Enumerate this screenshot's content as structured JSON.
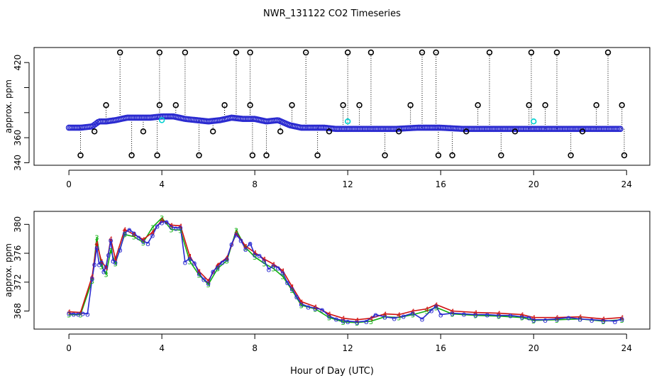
{
  "chart_data": [
    {
      "type": "scatter",
      "panel": "upper",
      "title": "NWR_131122  CO2 Timeseries",
      "ylabel": "approx. ppm",
      "xlim": [
        -1.5,
        25
      ],
      "ylim": [
        338,
        432
      ],
      "x_ticks": [
        0,
        4,
        8,
        12,
        16,
        20,
        24
      ],
      "y_ticks": [
        340,
        360,
        380,
        400,
        420
      ],
      "y_tick_labels": [
        "340",
        "360",
        "",
        "",
        "420"
      ],
      "baseline_series": {
        "name": "",
        "x": [
          0.0,
          0.5,
          1.0,
          1.3,
          1.6,
          2.0,
          2.5,
          3.0,
          3.5,
          4.0,
          4.5,
          5.0,
          5.5,
          6.0,
          6.5,
          7.0,
          7.5,
          8.0,
          8.5,
          9.0,
          9.5,
          10.0,
          10.5,
          11.0,
          11.5,
          12.0,
          13.0,
          14.0,
          15.0,
          16.0,
          17.0,
          18.0,
          19.0,
          19.8,
          20.0,
          21.0,
          22.0,
          23.0,
          23.8
        ],
        "values": [
          368,
          368,
          369,
          373,
          373,
          374,
          376,
          376,
          376,
          377,
          377,
          375,
          374,
          373,
          374,
          376,
          375,
          375,
          373,
          374,
          370,
          368,
          368,
          368,
          367,
          367,
          367,
          367,
          368,
          368,
          367,
          367,
          367,
          367,
          367,
          367,
          367,
          367,
          367
        ],
        "color": "#2a2ad0"
      },
      "spikes": {
        "x": [
          0.5,
          1.1,
          1.6,
          2.2,
          2.7,
          3.2,
          3.8,
          3.9,
          3.9,
          4.6,
          5.0,
          5.6,
          6.2,
          6.7,
          7.2,
          7.8,
          7.8,
          7.9,
          8.5,
          9.1,
          9.6,
          10.2,
          10.7,
          11.2,
          11.8,
          12.0,
          12.5,
          13.0,
          13.6,
          14.2,
          14.7,
          15.2,
          15.8,
          15.9,
          16.5,
          17.1,
          17.6,
          18.1,
          18.6,
          19.2,
          19.8,
          19.9,
          20.5,
          21.0,
          21.6,
          22.1,
          22.7,
          23.2,
          23.8,
          23.9
        ],
        "values": [
          345,
          365,
          386,
          432,
          345,
          365,
          345,
          386,
          432,
          386,
          432,
          345,
          365,
          386,
          432,
          386,
          432,
          345,
          345,
          365,
          386,
          432,
          345,
          365,
          386,
          432,
          386,
          432,
          345,
          365,
          386,
          432,
          432,
          345,
          345,
          365,
          386,
          432,
          345,
          365,
          386,
          432,
          386,
          432,
          345,
          365,
          386,
          432,
          386,
          345
        ]
      },
      "cyan_points": {
        "x": [
          4.0,
          12.0,
          20.0
        ],
        "values": [
          374,
          373,
          373
        ],
        "color": "#00d0d0"
      }
    },
    {
      "type": "line",
      "panel": "lower",
      "xlabel": "Hour of Day (UTC)",
      "ylabel": "approx. ppm",
      "xlim": [
        -1.5,
        25
      ],
      "ylim": [
        365.5,
        381.8
      ],
      "x_ticks": [
        0,
        4,
        8,
        12,
        16,
        20,
        24
      ],
      "y_ticks": [
        368,
        372,
        376,
        380
      ],
      "series": [
        {
          "name": "",
          "color": "#2a2ad0",
          "x": [
            0.0,
            0.2,
            0.4,
            0.6,
            0.8,
            1.0,
            1.1,
            1.2,
            1.3,
            1.4,
            1.5,
            1.6,
            1.7,
            1.8,
            1.9,
            2.0,
            2.2,
            2.4,
            2.6,
            2.8,
            3.0,
            3.2,
            3.4,
            3.6,
            3.8,
            4.0,
            4.2,
            4.4,
            4.6,
            4.8,
            5.0,
            5.2,
            5.4,
            5.6,
            5.8,
            6.0,
            6.2,
            6.4,
            6.6,
            6.8,
            7.0,
            7.2,
            7.4,
            7.6,
            7.8,
            8.0,
            8.2,
            8.4,
            8.6,
            8.8,
            9.0,
            9.2,
            9.4,
            9.6,
            9.8,
            10.0,
            10.3,
            10.6,
            10.9,
            11.2,
            11.5,
            11.8,
            12.0,
            12.4,
            12.8,
            13.2,
            13.6,
            14.0,
            14.4,
            14.8,
            15.2,
            15.6,
            15.8,
            16.0,
            16.5,
            17.0,
            17.5,
            18.0,
            18.5,
            19.0,
            19.5,
            19.8,
            20.0,
            20.5,
            21.0,
            21.5,
            22.0,
            22.5,
            23.0,
            23.5,
            23.8
          ],
          "values": [
            367.7,
            367.6,
            367.6,
            367.7,
            367.6,
            372.5,
            374.5,
            376.8,
            374.5,
            374.8,
            373.5,
            374.2,
            375.8,
            377.8,
            375.0,
            374.8,
            376.5,
            378.8,
            379.3,
            378.8,
            378.2,
            377.7,
            377.4,
            378.5,
            379.8,
            380.3,
            380.4,
            379.7,
            379.5,
            379.6,
            374.8,
            375.3,
            374.7,
            373.2,
            372.4,
            371.9,
            373.5,
            374.1,
            374.8,
            375.2,
            377.3,
            378.6,
            377.8,
            376.6,
            377.4,
            375.8,
            375.7,
            375.0,
            373.8,
            374.3,
            374.0,
            373.3,
            372.0,
            371.1,
            370.0,
            369.0,
            368.6,
            368.4,
            368.2,
            367.3,
            366.9,
            366.7,
            366.6,
            366.5,
            366.6,
            367.5,
            367.2,
            367.0,
            367.3,
            367.7,
            366.9,
            368.1,
            368.7,
            367.5,
            367.7,
            367.6,
            367.5,
            367.5,
            367.4,
            367.4,
            367.2,
            367.1,
            366.8,
            366.8,
            366.9,
            367.1,
            366.9,
            366.8,
            366.7,
            366.6,
            366.9
          ]
        },
        {
          "name": "",
          "color": "#d01010",
          "x": [
            0.0,
            0.5,
            1.0,
            1.2,
            1.4,
            1.6,
            1.8,
            2.0,
            2.4,
            2.8,
            3.2,
            3.6,
            4.0,
            4.4,
            4.8,
            5.2,
            5.6,
            6.0,
            6.4,
            6.8,
            7.2,
            7.6,
            8.0,
            8.4,
            8.8,
            9.2,
            9.6,
            10.0,
            10.6,
            11.2,
            11.8,
            12.4,
            13.0,
            13.6,
            14.2,
            14.8,
            15.4,
            15.8,
            16.5,
            17.5,
            18.5,
            19.5,
            20.0,
            21.0,
            22.0,
            23.0,
            23.8
          ],
          "values": [
            367.9,
            367.8,
            372.8,
            377.4,
            374.9,
            374.0,
            378.0,
            375.2,
            379.3,
            378.6,
            377.9,
            378.9,
            380.6,
            379.9,
            379.8,
            375.6,
            373.5,
            372.2,
            374.4,
            375.4,
            378.8,
            377.0,
            376.1,
            375.2,
            374.5,
            373.6,
            371.4,
            369.3,
            368.6,
            367.6,
            367.0,
            366.8,
            367.0,
            367.6,
            367.5,
            368.0,
            368.3,
            368.9,
            368.0,
            367.8,
            367.7,
            367.5,
            367.1,
            367.1,
            367.2,
            366.9,
            367.1
          ]
        },
        {
          "name": "",
          "color": "#10b010",
          "x": [
            0.0,
            0.5,
            1.0,
            1.2,
            1.4,
            1.6,
            1.8,
            2.0,
            2.4,
            2.8,
            3.2,
            3.6,
            4.0,
            4.4,
            4.8,
            5.2,
            5.6,
            6.0,
            6.4,
            6.8,
            7.2,
            7.6,
            8.0,
            8.4,
            8.8,
            9.2,
            9.6,
            10.0,
            10.6,
            11.2,
            11.8,
            12.4,
            13.0,
            13.6,
            14.2,
            14.8,
            15.4,
            15.8,
            16.5,
            17.5,
            18.5,
            19.5,
            20.0,
            21.0,
            22.0,
            23.0,
            23.8
          ],
          "values": [
            367.5,
            367.5,
            372.2,
            378.2,
            374.2,
            373.1,
            376.4,
            374.6,
            378.6,
            378.3,
            377.5,
            379.6,
            380.9,
            379.3,
            379.2,
            374.9,
            373.0,
            371.7,
            373.9,
            375.0,
            379.2,
            376.8,
            375.5,
            374.6,
            373.9,
            372.8,
            370.9,
            368.8,
            368.3,
            367.1,
            366.5,
            366.4,
            366.6,
            367.2,
            367.1,
            367.5,
            368.0,
            368.5,
            367.6,
            367.4,
            367.3,
            367.1,
            366.7,
            366.8,
            366.9,
            366.6,
            366.8
          ]
        }
      ]
    }
  ]
}
